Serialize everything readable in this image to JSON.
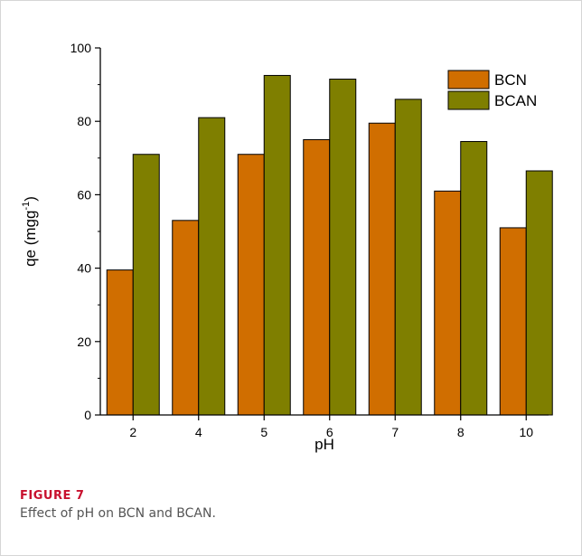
{
  "figure": {
    "label": "FIGURE 7",
    "caption": "Effect of pH on BCN and BCAN."
  },
  "chart_data": {
    "type": "bar",
    "title": "",
    "xlabel": "pH",
    "ylabel_main": "qe (mgg",
    "ylabel_sup": "-1",
    "ylabel_tail": ")",
    "categories": [
      "2",
      "4",
      "5",
      "6",
      "7",
      "8",
      "10"
    ],
    "series": [
      {
        "name": "BCN",
        "color": "#d06e00",
        "values": [
          39.5,
          53,
          71,
          75,
          79.5,
          61,
          51
        ]
      },
      {
        "name": "BCAN",
        "color": "#7f7f00",
        "values": [
          71,
          81,
          92.5,
          91.5,
          86,
          74.5,
          66.5
        ]
      }
    ],
    "ylim": [
      0,
      100
    ],
    "yticks": [
      0,
      20,
      40,
      60,
      80,
      100
    ],
    "grid": false,
    "legend_position": "top-right"
  }
}
